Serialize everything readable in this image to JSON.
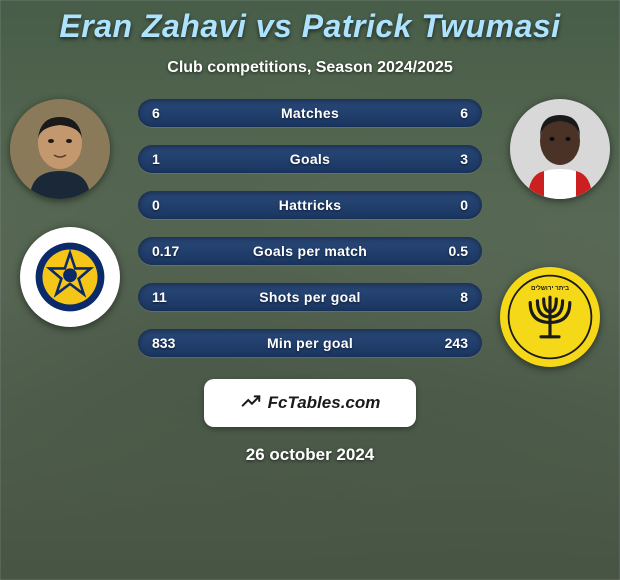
{
  "title": "Eran Zahavi vs Patrick Twumasi",
  "title_color": "#aee3ff",
  "title_fontsize": 32,
  "subtitle": "Club competitions, Season 2024/2025",
  "subtitle_color": "#ffffff",
  "subtitle_fontsize": 16,
  "background": {
    "overlay_color": "rgba(30,40,50,0.45)",
    "base_gradient": [
      "#6a8a5a",
      "#7a9565",
      "#849d6f",
      "#8a9f74",
      "#7a8d63",
      "#6a7852"
    ]
  },
  "player_left": {
    "name": "Eran Zahavi",
    "avatar_bg": "#8a7a5a",
    "skin_tone": "#c4986e",
    "hair_color": "#1a1a1a",
    "shirt_color": "#1a2838"
  },
  "player_right": {
    "name": "Patrick Twumasi",
    "avatar_bg": "#d8d8d8",
    "skin_tone": "#4a3226",
    "hair_color": "#1a1a1a",
    "shirt_color": "#ffffff",
    "shirt_accent": "#cc2020"
  },
  "club_left": {
    "name": "Maccabi Tel Aviv",
    "bg_color": "#ffffff",
    "primary_color": "#0a2a6a",
    "accent_color": "#f5c518"
  },
  "club_right": {
    "name": "Beitar Jerusalem",
    "bg_color": "#f5d818",
    "primary_color": "#1a1a1a",
    "menorah_color": "#1a1a1a"
  },
  "bars": {
    "track_gradient": [
      "#2a4a7a",
      "#1a3560"
    ],
    "label_color": "#ffffff",
    "value_color": "#ffffff",
    "label_fontsize": 14,
    "value_fontsize": 14,
    "height": 28,
    "gap": 18,
    "items": [
      {
        "label": "Matches",
        "left": "6",
        "right": "6"
      },
      {
        "label": "Goals",
        "left": "1",
        "right": "3"
      },
      {
        "label": "Hattricks",
        "left": "0",
        "right": "0"
      },
      {
        "label": "Goals per match",
        "left": "0.17",
        "right": "0.5"
      },
      {
        "label": "Shots per goal",
        "left": "11",
        "right": "8"
      },
      {
        "label": "Min per goal",
        "left": "833",
        "right": "243"
      }
    ]
  },
  "footer_badge": {
    "text": "FcTables.com",
    "bg_color": "#ffffff",
    "text_color": "#1a1a1a",
    "icon_color": "#1a1a1a"
  },
  "date": "26 october 2024",
  "date_color": "#ffffff"
}
